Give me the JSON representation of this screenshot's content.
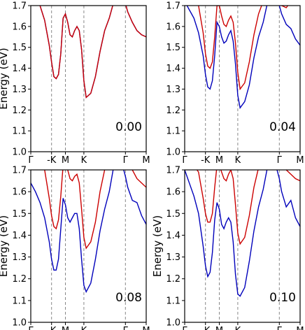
{
  "chart_data": [
    {
      "type": "line",
      "ylabel": "Energy (eV)",
      "ylim": [
        1.0,
        1.7
      ],
      "yticks": [
        "1.0",
        "1.1",
        "1.2",
        "1.3",
        "1.4",
        "1.5",
        "1.6",
        "1.7"
      ],
      "x_ticks": [
        "Γ",
        "-K",
        "M",
        "K",
        "Γ",
        "M"
      ],
      "annotation": "0.00",
      "series": [
        {
          "color": "#cc0000",
          "x": [
            0.0,
            0.1,
            0.2,
            0.3,
            0.4,
            0.45,
            0.5,
            0.55,
            0.6,
            0.65,
            0.7,
            0.75,
            0.8,
            0.85,
            0.9,
            0.95,
            1.0,
            1.05,
            1.1,
            1.15,
            1.2,
            1.3,
            1.4,
            1.5,
            1.6,
            1.7,
            1.8,
            1.9,
            2.0,
            2.05,
            2.1,
            2.2,
            2.3,
            2.4,
            2.5
          ],
          "y": [
            1.72,
            1.72,
            1.7,
            1.63,
            1.51,
            1.43,
            1.36,
            1.35,
            1.37,
            1.47,
            1.64,
            1.66,
            1.62,
            1.56,
            1.55,
            1.58,
            1.6,
            1.58,
            1.49,
            1.34,
            1.26,
            1.28,
            1.36,
            1.48,
            1.58,
            1.64,
            1.72,
            1.72,
            1.72,
            1.71,
            1.67,
            1.62,
            1.58,
            1.56,
            1.55
          ]
        },
        {
          "color": "#0000bb",
          "x": [
            0.0,
            0.1,
            0.2,
            0.3,
            0.4,
            0.45,
            0.5,
            0.55,
            0.6,
            0.65,
            0.7,
            0.75,
            0.8,
            0.85,
            0.9,
            0.95,
            1.0,
            1.05,
            1.1,
            1.15,
            1.2,
            1.3,
            1.4,
            1.5,
            1.6,
            1.7,
            1.8,
            1.9,
            2.0,
            2.05,
            2.1,
            2.2,
            2.3,
            2.4,
            2.5
          ],
          "y": [
            1.72,
            1.72,
            1.7,
            1.63,
            1.51,
            1.43,
            1.36,
            1.35,
            1.37,
            1.47,
            1.64,
            1.66,
            1.62,
            1.56,
            1.55,
            1.58,
            1.6,
            1.58,
            1.49,
            1.34,
            1.26,
            1.28,
            1.36,
            1.48,
            1.58,
            1.64,
            1.72,
            1.72,
            1.72,
            1.71,
            1.67,
            1.62,
            1.58,
            1.56,
            1.55
          ]
        }
      ]
    },
    {
      "type": "line",
      "ylabel": "",
      "ylim": [
        1.0,
        1.7
      ],
      "yticks": [
        "1.0",
        "1.1",
        "1.2",
        "1.3",
        "1.4",
        "1.5",
        "1.6",
        "1.7"
      ],
      "x_ticks": [
        "Γ",
        "-K",
        "M",
        "K",
        "Γ",
        "M"
      ],
      "annotation": "0.04",
      "series": [
        {
          "color": "#cc0000",
          "x": [
            0.0,
            0.1,
            0.2,
            0.3,
            0.4,
            0.45,
            0.5,
            0.55,
            0.6,
            0.65,
            0.7,
            0.75,
            0.8,
            0.85,
            0.9,
            0.95,
            1.0,
            1.05,
            1.1,
            1.15,
            1.2,
            1.3,
            1.4,
            1.5,
            1.6,
            1.7,
            1.8,
            1.9,
            2.0,
            2.05,
            2.1,
            2.2,
            2.3,
            2.4,
            2.5
          ],
          "y": [
            1.72,
            1.72,
            1.72,
            1.7,
            1.57,
            1.47,
            1.41,
            1.4,
            1.43,
            1.55,
            1.7,
            1.7,
            1.65,
            1.61,
            1.6,
            1.63,
            1.65,
            1.62,
            1.52,
            1.38,
            1.3,
            1.33,
            1.43,
            1.56,
            1.66,
            1.72,
            1.72,
            1.72,
            1.72,
            1.72,
            1.7,
            1.69,
            1.72,
            1.72,
            1.72
          ]
        },
        {
          "color": "#0000bb",
          "x": [
            0.0,
            0.1,
            0.2,
            0.3,
            0.4,
            0.45,
            0.5,
            0.55,
            0.6,
            0.65,
            0.7,
            0.75,
            0.8,
            0.85,
            0.9,
            0.95,
            1.0,
            1.05,
            1.1,
            1.15,
            1.2,
            1.3,
            1.4,
            1.5,
            1.6,
            1.7,
            1.8,
            1.9,
            2.0,
            2.05,
            2.1,
            2.2,
            2.3,
            2.4,
            2.5
          ],
          "y": [
            1.72,
            1.68,
            1.64,
            1.57,
            1.46,
            1.37,
            1.31,
            1.3,
            1.34,
            1.46,
            1.62,
            1.6,
            1.55,
            1.52,
            1.53,
            1.56,
            1.58,
            1.53,
            1.42,
            1.27,
            1.21,
            1.24,
            1.32,
            1.45,
            1.55,
            1.62,
            1.72,
            1.72,
            1.72,
            1.7,
            1.66,
            1.61,
            1.59,
            1.54,
            1.51
          ]
        }
      ]
    },
    {
      "type": "line",
      "ylabel": "Energy (eV)",
      "ylim": [
        1.0,
        1.7
      ],
      "yticks": [
        "1.0",
        "1.1",
        "1.2",
        "1.3",
        "1.4",
        "1.5",
        "1.6",
        "1.7"
      ],
      "x_ticks": [
        "Γ",
        "-K",
        "M",
        "K",
        "Γ",
        "M"
      ],
      "annotation": "0.08",
      "series": [
        {
          "color": "#cc0000",
          "x": [
            0.0,
            0.1,
            0.2,
            0.3,
            0.4,
            0.45,
            0.5,
            0.55,
            0.6,
            0.65,
            0.7,
            0.75,
            0.8,
            0.85,
            0.9,
            0.95,
            1.0,
            1.05,
            1.1,
            1.15,
            1.2,
            1.3,
            1.4,
            1.5,
            1.6,
            1.7,
            1.8,
            1.9,
            2.0,
            2.05,
            2.1,
            2.2,
            2.3,
            2.4,
            2.5
          ],
          "y": [
            1.72,
            1.72,
            1.72,
            1.7,
            1.57,
            1.49,
            1.44,
            1.43,
            1.47,
            1.58,
            1.72,
            1.72,
            1.7,
            1.66,
            1.65,
            1.67,
            1.68,
            1.64,
            1.52,
            1.39,
            1.34,
            1.37,
            1.46,
            1.6,
            1.7,
            1.72,
            1.72,
            1.72,
            1.72,
            1.72,
            1.72,
            1.7,
            1.66,
            1.64,
            1.62
          ]
        },
        {
          "color": "#0000bb",
          "x": [
            0.0,
            0.1,
            0.2,
            0.3,
            0.4,
            0.45,
            0.5,
            0.55,
            0.6,
            0.65,
            0.7,
            0.75,
            0.8,
            0.85,
            0.9,
            0.95,
            1.0,
            1.05,
            1.1,
            1.15,
            1.2,
            1.3,
            1.4,
            1.5,
            1.6,
            1.7,
            1.8,
            1.9,
            2.0,
            2.05,
            2.1,
            2.2,
            2.3,
            2.4,
            2.5
          ],
          "y": [
            1.64,
            1.6,
            1.55,
            1.48,
            1.37,
            1.29,
            1.24,
            1.24,
            1.29,
            1.43,
            1.57,
            1.54,
            1.48,
            1.46,
            1.48,
            1.5,
            1.5,
            1.43,
            1.29,
            1.17,
            1.14,
            1.18,
            1.29,
            1.42,
            1.52,
            1.6,
            1.72,
            1.72,
            1.71,
            1.67,
            1.62,
            1.56,
            1.55,
            1.49,
            1.45
          ]
        }
      ]
    },
    {
      "type": "line",
      "ylabel": "Energy (eV)",
      "ylim": [
        1.0,
        1.7
      ],
      "yticks": [
        "1.0",
        "1.1",
        "1.2",
        "1.3",
        "1.4",
        "1.5",
        "1.6",
        "1.7"
      ],
      "x_ticks": [
        "Γ",
        "-K",
        "M",
        "K",
        "Γ",
        "M"
      ],
      "annotation": "0.10",
      "series": [
        {
          "color": "#cc0000",
          "x": [
            0.0,
            0.1,
            0.2,
            0.3,
            0.4,
            0.45,
            0.5,
            0.55,
            0.6,
            0.65,
            0.7,
            0.75,
            0.8,
            0.85,
            0.9,
            0.95,
            1.0,
            1.05,
            1.1,
            1.15,
            1.2,
            1.3,
            1.4,
            1.5,
            1.6,
            1.7,
            1.8,
            1.9,
            2.0,
            2.05,
            2.1,
            2.2,
            2.3,
            2.4,
            2.5
          ],
          "y": [
            1.72,
            1.72,
            1.72,
            1.69,
            1.57,
            1.5,
            1.46,
            1.46,
            1.5,
            1.62,
            1.72,
            1.72,
            1.69,
            1.66,
            1.65,
            1.68,
            1.7,
            1.66,
            1.54,
            1.41,
            1.36,
            1.39,
            1.49,
            1.62,
            1.71,
            1.72,
            1.72,
            1.72,
            1.72,
            1.72,
            1.72,
            1.7,
            1.68,
            1.66,
            1.65
          ]
        },
        {
          "color": "#0000bb",
          "x": [
            0.0,
            0.1,
            0.2,
            0.3,
            0.4,
            0.45,
            0.5,
            0.55,
            0.6,
            0.65,
            0.7,
            0.75,
            0.8,
            0.85,
            0.9,
            0.95,
            1.0,
            1.05,
            1.1,
            1.15,
            1.2,
            1.3,
            1.4,
            1.5,
            1.6,
            1.7,
            1.8,
            1.9,
            2.0,
            2.05,
            2.1,
            2.2,
            2.3,
            2.4,
            2.5
          ],
          "y": [
            1.7,
            1.64,
            1.58,
            1.5,
            1.35,
            1.26,
            1.21,
            1.23,
            1.32,
            1.47,
            1.55,
            1.52,
            1.45,
            1.43,
            1.46,
            1.48,
            1.46,
            1.37,
            1.22,
            1.13,
            1.12,
            1.16,
            1.28,
            1.42,
            1.53,
            1.61,
            1.72,
            1.72,
            1.7,
            1.66,
            1.6,
            1.53,
            1.56,
            1.48,
            1.44
          ]
        }
      ]
    }
  ]
}
